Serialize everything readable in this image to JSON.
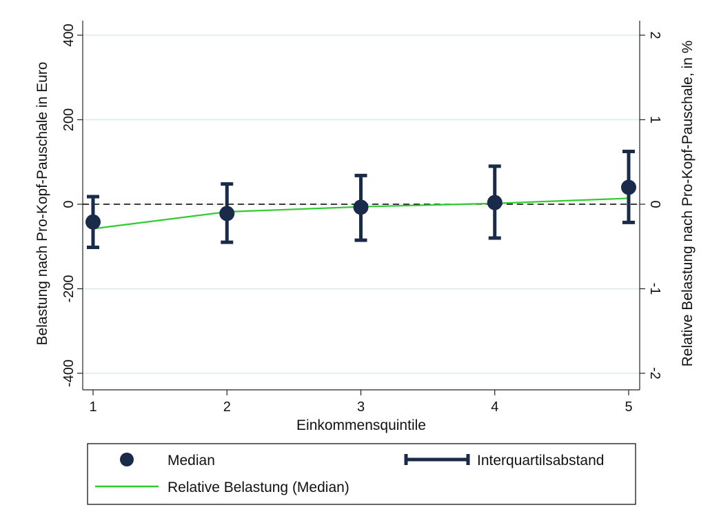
{
  "chart_data": {
    "type": "scatter",
    "xlabel": "Einkommensquintile",
    "ylabel_left": "Belastung nach Pro-Kopf-Pauschale in Euro",
    "ylabel_right": "Relative Belastung nach Pro-Kopf-Pauschale, in %",
    "x_ticks": [
      "1",
      "2",
      "3",
      "4",
      "5"
    ],
    "y_left_ticks": [
      "400",
      "200",
      "0",
      "-200",
      "-400"
    ],
    "y_right_ticks": [
      "2",
      "1",
      "0",
      "-1",
      "-2"
    ],
    "ylim_left": [
      -400,
      400
    ],
    "ylim_right": [
      -2,
      2
    ],
    "grid": true,
    "reference_line": {
      "y": 0,
      "style": "dashed"
    },
    "x": [
      1,
      2,
      3,
      4,
      5
    ],
    "series": [
      {
        "name": "Median",
        "axis": "left",
        "values": [
          -42,
          -22,
          -7,
          4,
          40
        ]
      },
      {
        "name": "Interquartilsabstand",
        "axis": "left",
        "lower": [
          -102,
          -90,
          -85,
          -80,
          -43
        ],
        "upper": [
          18,
          48,
          68,
          90,
          125
        ]
      },
      {
        "name": "Relative Belastung (Median)",
        "axis": "right",
        "values": [
          -0.29,
          -0.09,
          -0.03,
          0.01,
          0.07
        ]
      }
    ],
    "colors": {
      "median": "#1a2a4a",
      "iqr": "#1a2a4a",
      "relative": "#2ecc2e",
      "grid": "#dde8ec",
      "reference": "#000000"
    },
    "legend": {
      "position": "bottom",
      "items": [
        "Median",
        "Interquartilsabstand",
        "Relative Belastung (Median)"
      ]
    }
  }
}
